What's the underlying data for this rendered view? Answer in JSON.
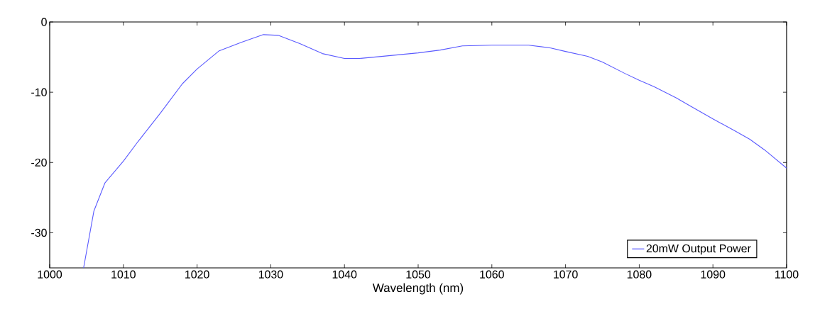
{
  "chart_data": {
    "type": "line",
    "xlabel": "Wavelength (nm)",
    "xlim": [
      1000,
      1100
    ],
    "xticks": [
      1000,
      1010,
      1020,
      1030,
      1040,
      1050,
      1060,
      1070,
      1080,
      1090,
      1100
    ],
    "ylim": [
      -35,
      0
    ],
    "yticks": [
      -30,
      -20,
      -10,
      0
    ],
    "grid": false,
    "legend": "bottom right",
    "series": [
      {
        "name": "20mW Output Power",
        "color": "#5a5aff",
        "x": [
          1004.6,
          1006,
          1007.5,
          1010,
          1012,
          1015,
          1018,
          1020,
          1023,
          1026,
          1029,
          1031,
          1034,
          1037,
          1040,
          1042,
          1045,
          1050,
          1053,
          1056,
          1060,
          1063,
          1065,
          1068,
          1070,
          1073,
          1075,
          1078,
          1080,
          1082,
          1085,
          1087,
          1090,
          1093,
          1095,
          1097,
          1100
        ],
        "values": [
          -35,
          -26.9,
          -22.9,
          -19.8,
          -17,
          -13,
          -8.8,
          -6.7,
          -4.1,
          -2.9,
          -1.8,
          -1.9,
          -3.1,
          -4.5,
          -5.2,
          -5.2,
          -4.9,
          -4.4,
          -4.0,
          -3.4,
          -3.3,
          -3.3,
          -3.3,
          -3.7,
          -4.2,
          -4.9,
          -5.7,
          -7.3,
          -8.3,
          -9.2,
          -10.8,
          -12.0,
          -13.8,
          -15.5,
          -16.7,
          -18.2,
          -20.8
        ]
      }
    ]
  }
}
